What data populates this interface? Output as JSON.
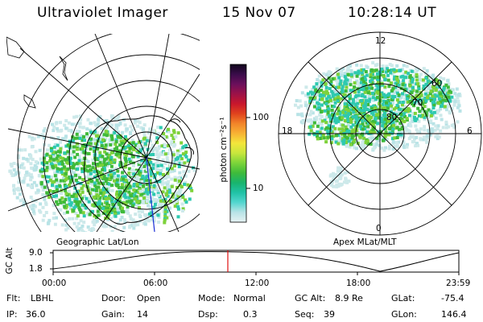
{
  "header": {
    "title": "Ultraviolet Imager",
    "date": "15 Nov 07",
    "time": "10:28:14 UT"
  },
  "colors": {
    "aurora_dense": "#3fba3a",
    "aurora_mid": "#7ed23a",
    "aurora_edge": "#2ec9b0",
    "aurora_faint": "#cde9ea",
    "coastline": "#000000",
    "meridian_line": "#1b2fd6",
    "time_marker": "#e01010"
  },
  "colorbar": {
    "ticks": [
      "100",
      "10"
    ],
    "label": "photon cm⁻²s⁻¹",
    "stops": [
      "#e6f2f3",
      "#b8e3e6",
      "#53d6cf",
      "#21c2a6",
      "#18b46d",
      "#3fbb3a",
      "#7cd43a",
      "#c8e63d",
      "#f3e63b",
      "#f7b234",
      "#f28429",
      "#e0431d",
      "#c9172c",
      "#9c1248",
      "#6b0f5c",
      "#3a0c4a",
      "#10061c"
    ]
  },
  "left_map": {
    "caption": "Geographic Lat/Lon"
  },
  "right_map": {
    "caption": "Apex MLat/MLT",
    "mlt_labels": {
      "top": "12",
      "left": "18",
      "right": "6",
      "bottom": "0"
    },
    "lat_labels": [
      "60",
      "70",
      "80"
    ]
  },
  "altitude_plot": {
    "ylabel": "GC Alt",
    "yticks": [
      "9.0",
      "1.8"
    ],
    "xticks": [
      "00:00",
      "06:00",
      "12:00",
      "18:00",
      "23:59"
    ]
  },
  "status": {
    "flt_label": "Flt:",
    "flt_value": "LBHL",
    "ip_label": "IP:",
    "ip_value": "36.0",
    "door_label": "Door:",
    "door_value": "Open",
    "gain_label": "Gain:",
    "gain_value": "14",
    "mode_label": "Mode:",
    "mode_value": "Normal",
    "dsp_label": "Dsp:",
    "dsp_value": "0.3",
    "gcalt_label": "GC Alt:",
    "gcalt_value": "8.9 Re",
    "seq_label": "Seq:",
    "seq_value": "39",
    "glat_label": "GLat:",
    "glat_value": "-75.4",
    "glon_label": "GLon:",
    "glon_value": "146.4"
  }
}
